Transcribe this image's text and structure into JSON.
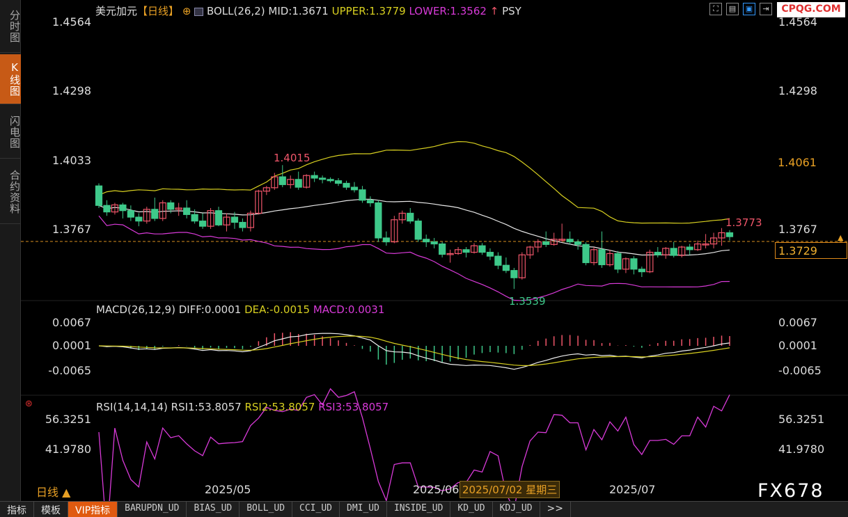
{
  "sidebar": {
    "tabs": [
      {
        "label": "分时图"
      },
      {
        "label": "K线图",
        "active": true
      },
      {
        "label": "闪电图"
      },
      {
        "label": "合约资料"
      }
    ]
  },
  "header": {
    "symbol": "美元加元",
    "period": "【日线】",
    "boll_label": "BOLL(26,2)",
    "mid": "MID:1.3671",
    "upper": "UPPER:1.3779",
    "lower": "LOWER:1.3562",
    "psy": "PSY",
    "brand": "CPQG.COM"
  },
  "price_axis": {
    "ticks": [
      "1.4564",
      "1.4298",
      "1.4033",
      "1.3767"
    ],
    "right_ticks": [
      "1.4564",
      "1.4298",
      "1.3767"
    ],
    "box_high": "1.4061",
    "box_current": "1.3729"
  },
  "annotations": {
    "high": "1.4015",
    "low": "1.3539",
    "last": "1.3773"
  },
  "macd": {
    "title": "MACD(26,12,9)",
    "diff": "DIFF:0.0001",
    "dea": "DEA:-0.0015",
    "macd": "MACD:0.0031",
    "ticks": [
      "0.0067",
      "0.0001",
      "-0.0065"
    ]
  },
  "rsi": {
    "title": "RSI(14,14,14)",
    "rsi1": "RSI1:53.8057",
    "rsi2": "RSI2:53.8057",
    "rsi3": "RSI3:53.8057",
    "ticks": [
      "56.3251",
      "41.9780"
    ]
  },
  "time_axis": {
    "labels": [
      "2025/05",
      "2025/06",
      "2025/07"
    ],
    "crosshair_date": "2025/07/02 星期三",
    "period_button": "日线 ▲"
  },
  "watermark": "FX678",
  "bottom_tabs": [
    "指标",
    "模板",
    "VIP指标",
    "BARUPDN_UD",
    "BIAS_UD",
    "BOLL_UD",
    "CCI_UD",
    "DMI_UD",
    "INSIDE_UD",
    "KD_UD",
    "KDJ_UD",
    ">>"
  ],
  "colors": {
    "up": "#f0566a",
    "down": "#3ec98a",
    "upper_band": "#d8d020",
    "mid_band": "#e8e8e8",
    "lower_band": "#d83ad8",
    "accent": "#e05a10"
  },
  "chart_data": {
    "type": "candlestick",
    "y_ticks": [
      1.4564,
      1.4298,
      1.4033,
      1.3767
    ],
    "candles": [
      [
        1.3935,
        1.3945,
        1.385,
        1.386
      ],
      [
        1.386,
        1.388,
        1.382,
        1.3835
      ],
      [
        1.3835,
        1.387,
        1.3825,
        1.3862
      ],
      [
        1.3862,
        1.387,
        1.381,
        1.384
      ],
      [
        1.384,
        1.386,
        1.38,
        1.3815
      ],
      [
        1.3815,
        1.383,
        1.378,
        1.38
      ],
      [
        1.38,
        1.3855,
        1.379,
        1.3845
      ],
      [
        1.3845,
        1.389,
        1.38,
        1.381
      ],
      [
        1.381,
        1.388,
        1.38,
        1.387
      ],
      [
        1.387,
        1.388,
        1.383,
        1.3845
      ],
      [
        1.3845,
        1.387,
        1.382,
        1.385
      ],
      [
        1.385,
        1.388,
        1.381,
        1.3825
      ],
      [
        1.3825,
        1.3845,
        1.379,
        1.38
      ],
      [
        1.38,
        1.383,
        1.377,
        1.378
      ],
      [
        1.378,
        1.385,
        1.377,
        1.384
      ],
      [
        1.384,
        1.3855,
        1.378,
        1.3785
      ],
      [
        1.3785,
        1.383,
        1.376,
        1.3815
      ],
      [
        1.3815,
        1.3835,
        1.377,
        1.3795
      ],
      [
        1.3795,
        1.381,
        1.376,
        1.3775
      ],
      [
        1.3775,
        1.384,
        1.376,
        1.383
      ],
      [
        1.383,
        1.392,
        1.3825,
        1.3915
      ],
      [
        1.3915,
        1.3935,
        1.39,
        1.3928
      ],
      [
        1.3928,
        1.3985,
        1.392,
        1.397
      ],
      [
        1.397,
        1.4015,
        1.393,
        1.394
      ],
      [
        1.394,
        1.3975,
        1.3925,
        1.396
      ],
      [
        1.396,
        1.399,
        1.392,
        1.393
      ],
      [
        1.393,
        1.398,
        1.3925,
        1.3975
      ],
      [
        1.3975,
        1.399,
        1.395,
        1.3965
      ],
      [
        1.3965,
        1.3975,
        1.3945,
        1.396
      ],
      [
        1.396,
        1.3968,
        1.3948,
        1.3955
      ],
      [
        1.3955,
        1.3965,
        1.3935,
        1.3945
      ],
      [
        1.3945,
        1.3955,
        1.392,
        1.393
      ],
      [
        1.393,
        1.395,
        1.391,
        1.392
      ],
      [
        1.392,
        1.3935,
        1.387,
        1.388
      ],
      [
        1.388,
        1.3895,
        1.3855,
        1.387
      ],
      [
        1.387,
        1.388,
        1.372,
        1.3735
      ],
      [
        1.3735,
        1.376,
        1.3705,
        1.372
      ],
      [
        1.372,
        1.382,
        1.3715,
        1.3805
      ],
      [
        1.3805,
        1.384,
        1.379,
        1.383
      ],
      [
        1.383,
        1.385,
        1.379,
        1.38
      ],
      [
        1.38,
        1.381,
        1.372,
        1.373
      ],
      [
        1.373,
        1.3748,
        1.37,
        1.372
      ],
      [
        1.372,
        1.3735,
        1.3695,
        1.3712
      ],
      [
        1.3712,
        1.372,
        1.366,
        1.3672
      ],
      [
        1.3672,
        1.369,
        1.364,
        1.3675
      ],
      [
        1.3675,
        1.37,
        1.367,
        1.369
      ],
      [
        1.369,
        1.37,
        1.366,
        1.368
      ],
      [
        1.368,
        1.3715,
        1.3675,
        1.3705
      ],
      [
        1.3705,
        1.3715,
        1.367,
        1.368
      ],
      [
        1.368,
        1.3695,
        1.365,
        1.3665
      ],
      [
        1.3665,
        1.368,
        1.3615,
        1.363
      ],
      [
        1.363,
        1.366,
        1.36,
        1.361
      ],
      [
        1.361,
        1.362,
        1.3539,
        1.3582
      ],
      [
        1.3582,
        1.368,
        1.3575,
        1.367
      ],
      [
        1.367,
        1.3705,
        1.3655,
        1.37
      ],
      [
        1.37,
        1.373,
        1.368,
        1.372
      ],
      [
        1.372,
        1.376,
        1.37,
        1.371
      ],
      [
        1.371,
        1.3755,
        1.3705,
        1.373
      ],
      [
        1.373,
        1.379,
        1.372,
        1.373
      ],
      [
        1.373,
        1.376,
        1.371,
        1.372
      ],
      [
        1.372,
        1.373,
        1.369,
        1.371
      ],
      [
        1.371,
        1.3718,
        1.363,
        1.364
      ],
      [
        1.364,
        1.37,
        1.363,
        1.369
      ],
      [
        1.369,
        1.376,
        1.362,
        1.3632
      ],
      [
        1.3632,
        1.369,
        1.3625,
        1.3675
      ],
      [
        1.3675,
        1.3685,
        1.36,
        1.3615
      ],
      [
        1.3615,
        1.366,
        1.36,
        1.3655
      ],
      [
        1.3655,
        1.3665,
        1.3595,
        1.3615
      ],
      [
        1.3615,
        1.3625,
        1.3585,
        1.3605
      ],
      [
        1.3605,
        1.369,
        1.36,
        1.368
      ],
      [
        1.368,
        1.37,
        1.366,
        1.367
      ],
      [
        1.367,
        1.37,
        1.3655,
        1.3695
      ],
      [
        1.3695,
        1.372,
        1.366,
        1.3668
      ],
      [
        1.3668,
        1.3705,
        1.366,
        1.37
      ],
      [
        1.37,
        1.3712,
        1.367,
        1.369
      ],
      [
        1.369,
        1.3725,
        1.3685,
        1.3712
      ],
      [
        1.3712,
        1.375,
        1.3695,
        1.3712
      ],
      [
        1.3712,
        1.3755,
        1.3695,
        1.3735
      ],
      [
        1.3735,
        1.3773,
        1.3705,
        1.3755
      ],
      [
        1.3755,
        1.3765,
        1.3725,
        1.374
      ]
    ]
  }
}
